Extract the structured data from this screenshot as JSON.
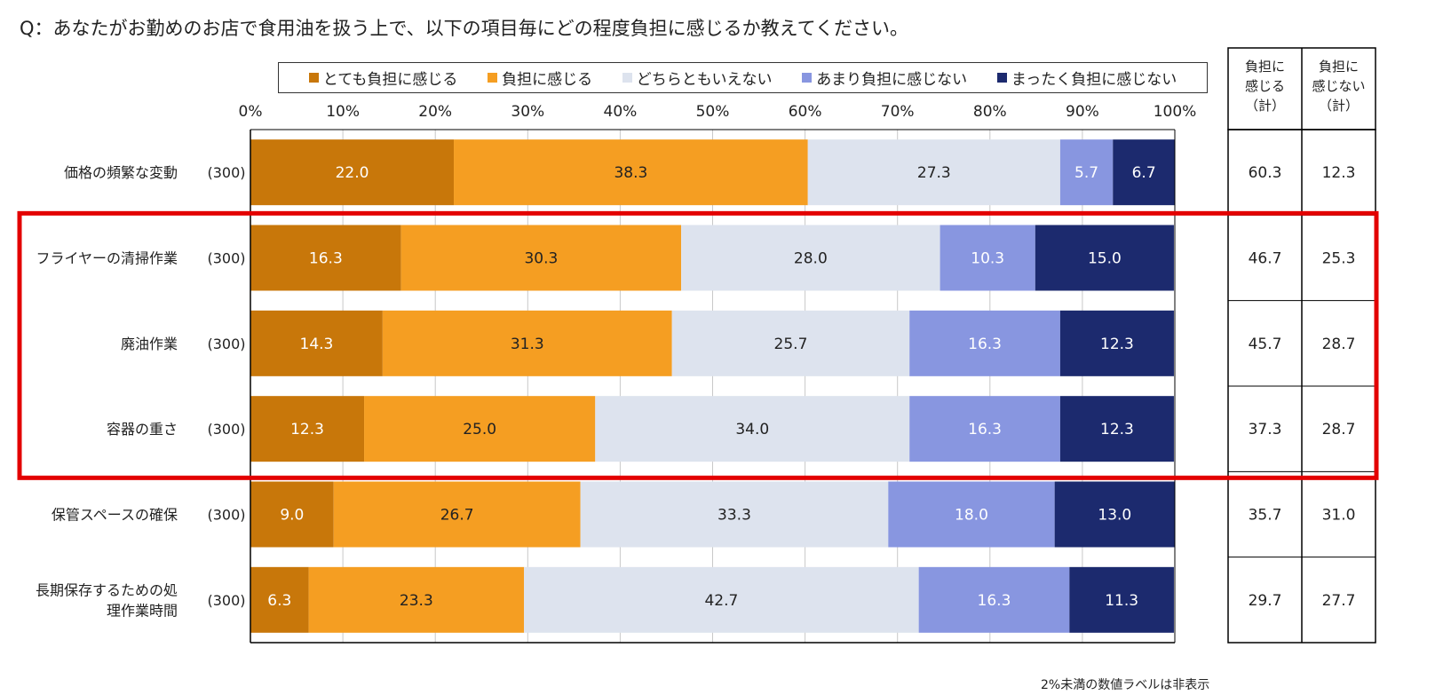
{
  "question": "Q：あなたがお勤めのお店で食用油を扱う上で、以下の項目毎にどの程度負担に感じるか教えてください。",
  "note": "2%未満の数値ラベルは非表示",
  "colors": {
    "series": [
      "#c8770a",
      "#f59e22",
      "#dde3ee",
      "#8896e0",
      "#1c2a6e"
    ],
    "label_text": [
      "#ffffff",
      "#222222",
      "#222222",
      "#ffffff",
      "#ffffff"
    ],
    "highlight": "#e30000"
  },
  "summary": {
    "headers": [
      [
        "負担に",
        "感じる",
        "（計）"
      ],
      [
        "負担に",
        "感じない",
        "（計）"
      ]
    ],
    "rows": [
      [
        "60.3",
        "12.3"
      ],
      [
        "46.7",
        "25.3"
      ],
      [
        "45.7",
        "28.7"
      ],
      [
        "37.3",
        "28.7"
      ],
      [
        "35.7",
        "31.0"
      ],
      [
        "29.7",
        "27.7"
      ]
    ]
  },
  "chart_data": {
    "type": "bar",
    "orientation": "horizontal",
    "stacked": true,
    "categories": [
      [
        "価格の頻繁な変動"
      ],
      [
        "フライヤーの清掃作業"
      ],
      [
        "廃油作業"
      ],
      [
        "容器の重さ"
      ],
      [
        "保管スペースの確保"
      ],
      [
        "長期保存するための処",
        "理作業時間"
      ]
    ],
    "n_labels": [
      "(300)",
      "(300)",
      "(300)",
      "(300)",
      "(300)",
      "(300)"
    ],
    "series": [
      {
        "name": "とても負担に感じる",
        "values": [
          22.0,
          16.3,
          14.3,
          12.3,
          9.0,
          6.3
        ]
      },
      {
        "name": "負担に感じる",
        "values": [
          38.3,
          30.3,
          31.3,
          25.0,
          26.7,
          23.3
        ]
      },
      {
        "name": "どちらともいえない",
        "values": [
          27.3,
          28.0,
          25.7,
          34.0,
          33.3,
          42.7
        ]
      },
      {
        "name": "あまり負担に感じない",
        "values": [
          5.7,
          10.3,
          16.3,
          16.3,
          18.0,
          16.3
        ]
      },
      {
        "name": "まったく負担に感じない",
        "values": [
          6.7,
          15.0,
          12.3,
          12.3,
          13.0,
          11.3
        ]
      }
    ],
    "xlim": [
      0,
      100
    ],
    "x_ticks": [
      "0%",
      "10%",
      "20%",
      "30%",
      "40%",
      "50%",
      "60%",
      "70%",
      "80%",
      "90%",
      "100%"
    ],
    "grid": true,
    "legend": "top",
    "highlighted_categories": [
      1,
      2,
      3
    ]
  }
}
